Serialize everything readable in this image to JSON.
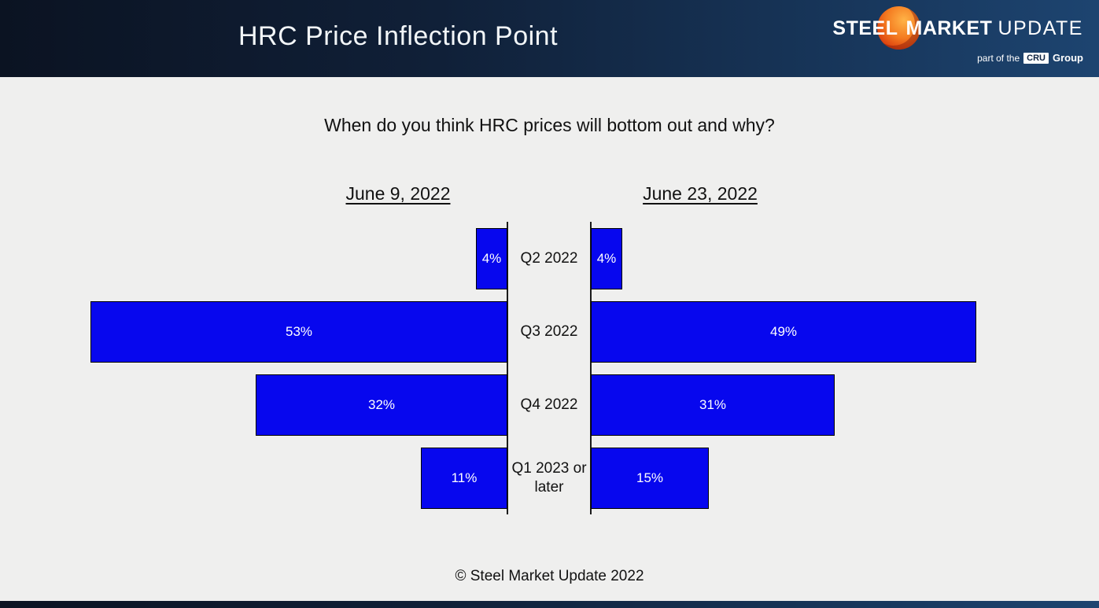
{
  "header": {
    "title": "HRC Price Inflection Point",
    "logo": {
      "steel": "STEEL",
      "market": "MARKET",
      "update": "UPDATE",
      "part_of_the": "part of the",
      "cru": "CRU",
      "group": "Group"
    }
  },
  "question": "When do you think HRC prices will bottom out and why?",
  "chart_data": {
    "type": "bar",
    "variant": "butterfly",
    "title": "When do you think HRC prices will bottom out and why?",
    "categories": [
      "Q2 2022",
      "Q3 2022",
      "Q4 2022",
      "Q1 2023 or later"
    ],
    "series": [
      {
        "name": "June 9, 2022",
        "side": "left",
        "values": [
          4,
          53,
          32,
          11
        ]
      },
      {
        "name": "June 23, 2022",
        "side": "right",
        "values": [
          4,
          49,
          31,
          15
        ]
      }
    ],
    "value_suffix": "%",
    "xlim": [
      0,
      55
    ],
    "bar_color": "#0707ee",
    "bar_label_color": "#ffffff",
    "legend_position": "column-headers",
    "grid": false
  },
  "footer": "© Steel Market Update 2022"
}
